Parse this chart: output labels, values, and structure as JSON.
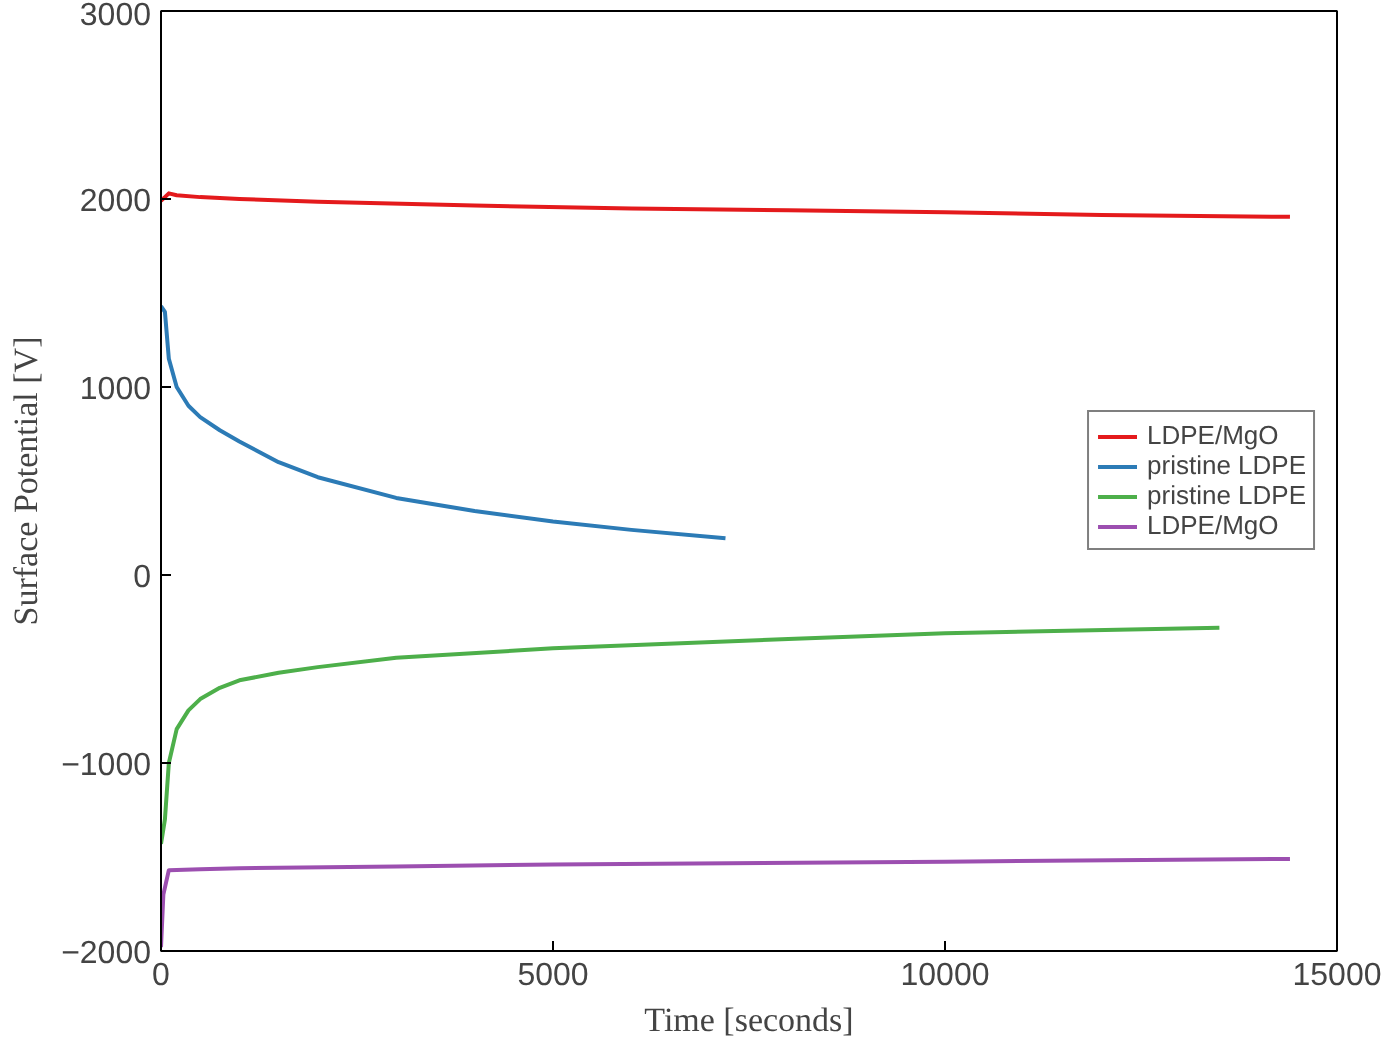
{
  "chart_data": {
    "type": "line",
    "xlabel": "Time [seconds]",
    "ylabel": "Surface Potential [V]",
    "xlim": [
      0,
      15000
    ],
    "xticks": [
      0,
      5000,
      10000,
      15000
    ],
    "ylim": [
      -2000,
      3000
    ],
    "yticks": [
      -2000,
      -1000,
      0,
      1000,
      2000,
      3000
    ],
    "grid": false,
    "legend": "right",
    "series": [
      {
        "name": "LDPE/MgO",
        "color": "#e41a1c",
        "x": [
          0,
          50,
          100,
          200,
          500,
          1000,
          2000,
          4000,
          6000,
          8000,
          10000,
          12000,
          14400
        ],
        "values": [
          1990,
          2010,
          2030,
          2020,
          2010,
          2000,
          1985,
          1965,
          1950,
          1940,
          1930,
          1915,
          1905
        ]
      },
      {
        "name": "pristine LDPE",
        "color": "#2c7bb6",
        "x": [
          0,
          50,
          100,
          200,
          350,
          500,
          750,
          1000,
          1500,
          2000,
          3000,
          4000,
          5000,
          6000,
          7200
        ],
        "values": [
          1430,
          1400,
          1150,
          1000,
          900,
          840,
          770,
          710,
          600,
          520,
          410,
          340,
          285,
          240,
          195
        ]
      },
      {
        "name": "pristine LDPE",
        "color": "#4daf4a",
        "x": [
          0,
          50,
          100,
          200,
          350,
          500,
          750,
          1000,
          1500,
          2000,
          3000,
          5000,
          8000,
          10000,
          13500
        ],
        "values": [
          -1430,
          -1300,
          -1000,
          -820,
          -720,
          -660,
          -600,
          -560,
          -520,
          -490,
          -440,
          -390,
          -340,
          -310,
          -280
        ]
      },
      {
        "name": "LDPE/MgO",
        "color": "#9c4fb0",
        "x": [
          0,
          30,
          100,
          500,
          1000,
          3000,
          5000,
          10000,
          14400
        ],
        "values": [
          -1980,
          -1700,
          -1570,
          -1565,
          -1560,
          -1550,
          -1540,
          -1525,
          -1510
        ]
      }
    ]
  }
}
